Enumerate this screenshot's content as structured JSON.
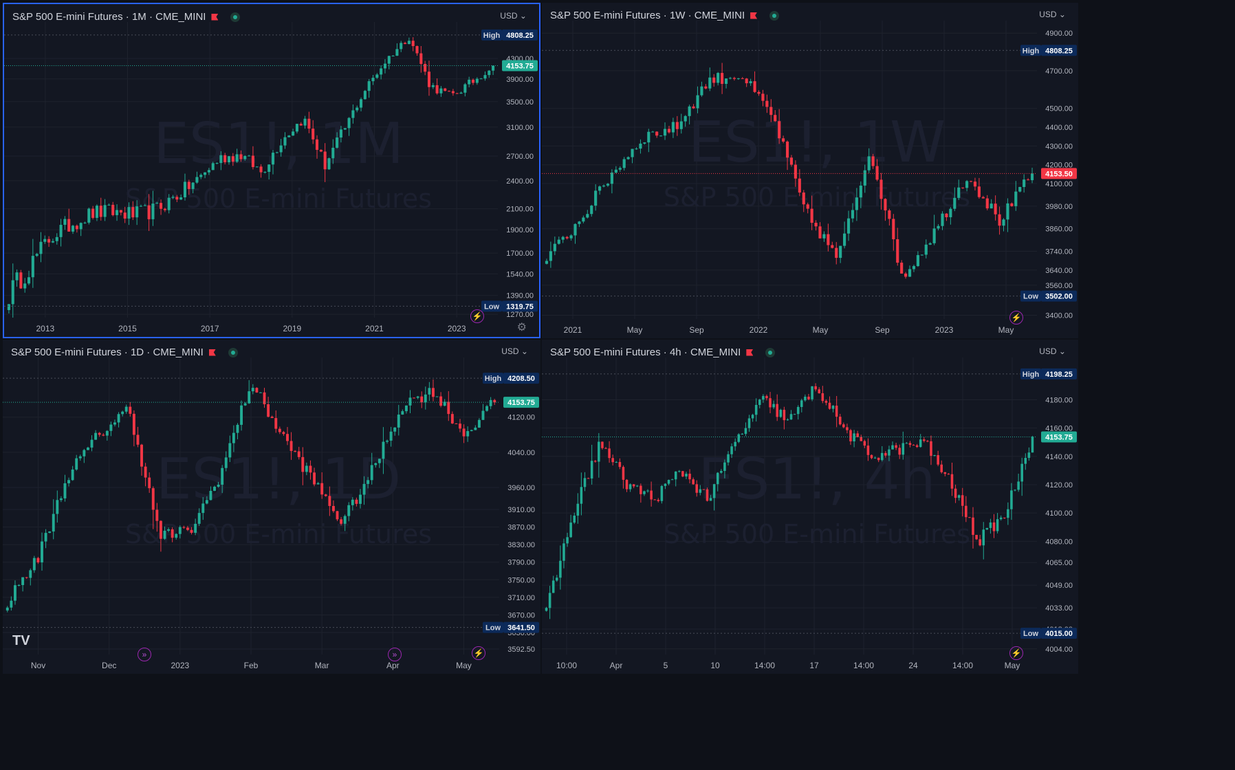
{
  "layout": "2x2",
  "colors": {
    "bg": "#131722",
    "up": "#22ab94",
    "down": "#f23645",
    "grid": "#1e222d",
    "text": "#b2b5be",
    "active_border": "#2962ff"
  },
  "icons": [
    "flag-icon",
    "live-status-icon",
    "bolt-icon",
    "replay-icon",
    "settings-icon",
    "tradingview-logo"
  ],
  "logo": "TV",
  "panes": [
    {
      "id": "monthly",
      "title": "S&P 500 E-mini Futures · 1M · CME_MINI",
      "currency": "USD",
      "watermark_main": "ES1!, 1M",
      "watermark_sub": "S&P 500 E-mini Futures",
      "yticks": [
        "4300.00",
        "3900.00",
        "3500.00",
        "3100.00",
        "2700.00",
        "2400.00",
        "2100.00",
        "1900.00",
        "1700.00",
        "1540.00",
        "1390.00",
        "1270.00"
      ],
      "xticks": [
        "2013",
        "2015",
        "2017",
        "2019",
        "2021",
        "2023"
      ],
      "high": {
        "label": "High",
        "value": "4808.25"
      },
      "last": {
        "value": "4153.75",
        "color": "#22ab94"
      },
      "low": {
        "label": "Low",
        "value": "1319.75"
      },
      "log": true,
      "chart_data": {
        "type": "candlestick",
        "ylim": [
          1250,
          4950
        ],
        "x": [
          "2012-12",
          "2013-06",
          "2013-12",
          "2014-06",
          "2014-12",
          "2015-06",
          "2015-12",
          "2016-06",
          "2016-12",
          "2017-06",
          "2017-12",
          "2018-06",
          "2018-12",
          "2019-06",
          "2019-12",
          "2020-03",
          "2020-06",
          "2020-12",
          "2021-06",
          "2021-12",
          "2022-06",
          "2022-09",
          "2022-12",
          "2023-04"
        ],
        "close": [
          1400,
          1600,
          1840,
          1960,
          2060,
          2070,
          2040,
          2090,
          2240,
          2420,
          2670,
          2720,
          2500,
          2930,
          3230,
          2580,
          3100,
          3750,
          4300,
          4766,
          3780,
          3590,
          3840,
          4153.75
        ]
      }
    },
    {
      "id": "weekly",
      "title": "S&P 500 E-mini Futures · 1W · CME_MINI",
      "currency": "USD",
      "watermark_main": "ES1!, 1W",
      "watermark_sub": "S&P 500 E-mini Futures",
      "yticks": [
        "4900.00",
        "4700.00",
        "4500.00",
        "4400.00",
        "4300.00",
        "4200.00",
        "4100.00",
        "3980.00",
        "3860.00",
        "3740.00",
        "3640.00",
        "3560.00",
        "3400.00"
      ],
      "xticks": [
        "2021",
        "May",
        "Sep",
        "2022",
        "May",
        "Sep",
        "2023",
        "May"
      ],
      "high": {
        "label": "High",
        "value": "4808.25"
      },
      "last": {
        "value": "4153.50",
        "color": "#f23645"
      },
      "low": {
        "label": "Low",
        "value": "3502.00"
      },
      "log": false,
      "chart_data": {
        "type": "candlestick",
        "ylim": [
          3380,
          4930
        ],
        "x": [
          "2021-01",
          "2021-03",
          "2021-05",
          "2021-07",
          "2021-09",
          "2021-11",
          "2022-01",
          "2022-03",
          "2022-05",
          "2022-06",
          "2022-08",
          "2022-10",
          "2022-12",
          "2023-02",
          "2023-03",
          "2023-04"
        ],
        "close": [
          3700,
          3900,
          4150,
          4350,
          4400,
          4650,
          4680,
          4450,
          3950,
          3700,
          4280,
          3600,
          3850,
          4150,
          3900,
          4153.5
        ]
      }
    },
    {
      "id": "daily",
      "title": "S&P 500 E-mini Futures · 1D · CME_MINI",
      "currency": "USD",
      "watermark_main": "ES1!, 1D",
      "watermark_sub": "S&P 500 E-mini Futures",
      "yticks": [
        "4120.00",
        "4040.00",
        "3960.00",
        "3910.00",
        "3870.00",
        "3830.00",
        "3790.00",
        "3750.00",
        "3710.00",
        "3670.00",
        "3630.00",
        "3592.50"
      ],
      "xticks": [
        "Nov",
        "Dec",
        "2023",
        "Feb",
        "Mar",
        "Apr",
        "May"
      ],
      "high": {
        "label": "High",
        "value": "4208.50"
      },
      "last": {
        "value": "4153.75",
        "color": "#22ab94"
      },
      "low": {
        "label": "Low",
        "value": "3641.50"
      },
      "log": false,
      "chart_data": {
        "type": "candlestick",
        "ylim": [
          3580,
          4240
        ],
        "x": [
          "2022-10-20",
          "2022-11-01",
          "2022-11-10",
          "2022-11-30",
          "2022-12-13",
          "2022-12-22",
          "2023-01-05",
          "2023-01-20",
          "2023-02-02",
          "2023-02-16",
          "2023-03-02",
          "2023-03-13",
          "2023-03-23",
          "2023-04-03",
          "2023-04-18",
          "2023-04-26",
          "2023-04-28"
        ],
        "close": [
          3700,
          3800,
          3990,
          4080,
          4140,
          3850,
          3860,
          3990,
          4200,
          4080,
          3980,
          3880,
          4000,
          4150,
          4180,
          4080,
          4153.75
        ]
      }
    },
    {
      "id": "h4",
      "title": "S&P 500 E-mini Futures · 4h · CME_MINI",
      "currency": "USD",
      "watermark_main": "ES1!, 4h",
      "watermark_sub": "S&P 500 E-mini Futures",
      "yticks": [
        "4180.00",
        "4160.00",
        "4140.00",
        "4120.00",
        "4100.00",
        "4080.00",
        "4065.00",
        "4049.00",
        "4033.00",
        "4018.00",
        "4004.00"
      ],
      "xticks": [
        "10:00",
        "Apr",
        "5",
        "10",
        "14:00",
        "17",
        "14:00",
        "24",
        "14:00",
        "May"
      ],
      "high": {
        "label": "High",
        "value": "4198.25"
      },
      "last": {
        "value": "4153.75",
        "color": "#22ab94"
      },
      "low": {
        "label": "Low",
        "value": "4015.00"
      },
      "log": false,
      "chart_data": {
        "type": "candlestick",
        "ylim": [
          4000,
          4205
        ],
        "x": [
          "03-30 10:00",
          "03-31",
          "04-03",
          "04-04",
          "04-06",
          "04-10",
          "04-12",
          "04-13",
          "04-14",
          "04-17",
          "04-18",
          "04-19",
          "04-20",
          "04-21",
          "04-24",
          "04-25",
          "04-26",
          "04-27",
          "04-28"
        ],
        "close": [
          4030,
          4100,
          4150,
          4120,
          4110,
          4130,
          4110,
          4150,
          4180,
          4165,
          4190,
          4160,
          4140,
          4145,
          4150,
          4120,
          4080,
          4100,
          4153.75
        ]
      }
    }
  ]
}
